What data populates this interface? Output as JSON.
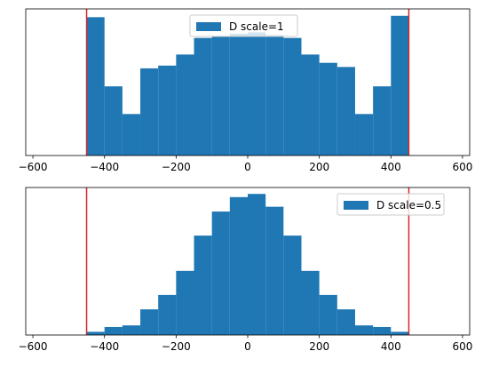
{
  "chart_data": [
    {
      "type": "bar",
      "subtype": "histogram",
      "legend": "D scale=1",
      "legend_position": "top-center",
      "bin_width": 50,
      "bin_start": -450,
      "bin_end": 450,
      "bin_centers": [
        -425,
        -375,
        -325,
        -275,
        -225,
        -175,
        -125,
        -75,
        -25,
        25,
        75,
        125,
        175,
        225,
        275,
        325,
        375,
        425
      ],
      "values": [
        100,
        50,
        30,
        63,
        65,
        73,
        85,
        86,
        88,
        89,
        87,
        85,
        73,
        67,
        64,
        30,
        50,
        101
      ],
      "bar_color": "#1f77b4",
      "vlines": [
        -450,
        450
      ],
      "vline_color": "#d62728",
      "xlim": [
        -620,
        620
      ],
      "ylim": [
        0,
        106
      ],
      "xticks": [
        -600,
        -400,
        -200,
        0,
        200,
        400,
        600
      ],
      "xtick_labels": [
        "−600",
        "−400",
        "−200",
        "0",
        "200",
        "400",
        "600"
      ],
      "y_axis_visible": false,
      "grid": false
    },
    {
      "type": "bar",
      "subtype": "histogram",
      "legend": "D scale=0.5",
      "legend_position": "top-right",
      "bin_width": 50,
      "bin_start": -450,
      "bin_end": 450,
      "bin_centers": [
        -425,
        -375,
        -325,
        -275,
        -225,
        -175,
        -125,
        -75,
        -25,
        25,
        75,
        125,
        175,
        225,
        275,
        325,
        375,
        425
      ],
      "values": [
        2,
        5,
        6,
        16,
        25,
        40,
        62,
        77,
        86,
        88,
        80,
        62,
        40,
        25,
        16,
        6,
        5,
        2
      ],
      "bar_color": "#1f77b4",
      "vlines": [
        -450,
        450
      ],
      "vline_color": "#d62728",
      "xlim": [
        -620,
        620
      ],
      "ylim": [
        0,
        92
      ],
      "xticks": [
        -600,
        -400,
        -200,
        0,
        200,
        400,
        600
      ],
      "xtick_labels": [
        "−600",
        "−400",
        "−200",
        "0",
        "200",
        "400",
        "600"
      ],
      "y_axis_visible": false,
      "grid": false
    }
  ]
}
